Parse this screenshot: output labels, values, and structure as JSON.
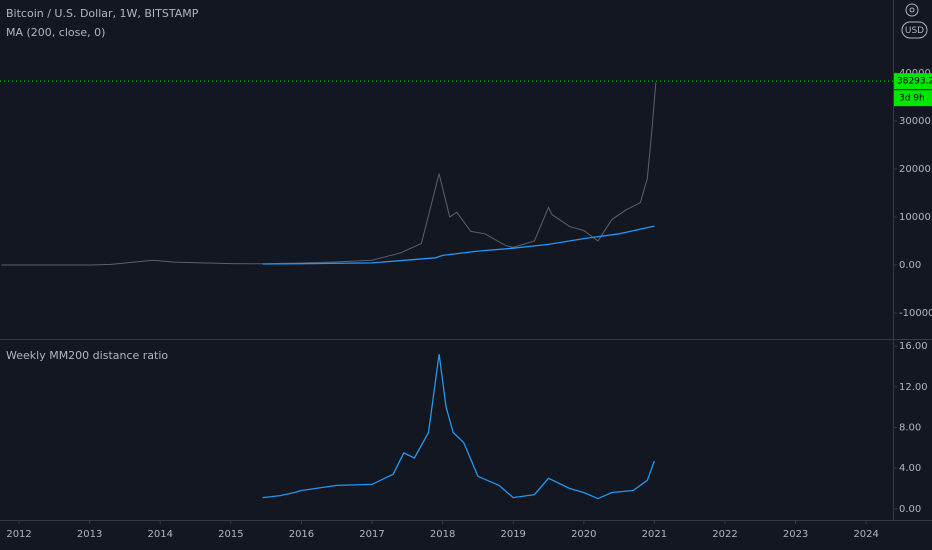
{
  "chart_data": [
    {
      "type": "line",
      "title": "Bitcoin / U.S. Dollar, 1W, BITSTAMP",
      "currency": "USD",
      "last_price": 38293.27,
      "last_price_color": "#00e600",
      "countdown": "3d 9h",
      "xlim": [
        2011.73,
        2024.38
      ],
      "ylim": [
        -15200,
        55200
      ],
      "yticks": [
        {
          "value": -10000,
          "label": "-10000.00"
        },
        {
          "value": 0,
          "label": "0.00"
        },
        {
          "value": 10000,
          "label": "10000.00"
        },
        {
          "value": 20000,
          "label": "20000.00"
        },
        {
          "value": 30000,
          "label": "30000.00"
        },
        {
          "value": 40000,
          "label": "40000.00"
        }
      ],
      "series": [
        {
          "color": "#5d606b",
          "x": [
            2011.75,
            2012.5,
            2013.0,
            2013.3,
            2013.9,
            2014.2,
            2015.0,
            2015.5,
            2016.0,
            2016.5,
            2017.0,
            2017.4,
            2017.7,
            2017.95,
            2018.1,
            2018.2,
            2018.4,
            2018.6,
            2018.9,
            2019.0,
            2019.3,
            2019.5,
            2019.55,
            2019.8,
            2020.0,
            2020.2,
            2020.4,
            2020.6,
            2020.8,
            2020.9,
            2020.97,
            2021.02
          ],
          "values": [
            5,
            7,
            13,
            140,
            1000,
            600,
            300,
            250,
            430,
            650,
            1000,
            2500,
            4500,
            19000,
            10000,
            11000,
            7000,
            6500,
            4000,
            3700,
            5000,
            12000,
            10500,
            8000,
            7200,
            5000,
            9500,
            11500,
            13000,
            18000,
            29000,
            38000
          ]
        },
        {
          "name": "MA (200, close, 0)",
          "color": "#2196f3",
          "x": [
            2015.45,
            2016.0,
            2017.0,
            2017.9,
            2018.0,
            2018.5,
            2019.0,
            2019.5,
            2020.0,
            2020.5,
            2021.0
          ],
          "values": [
            220,
            280,
            450,
            1500,
            2000,
            2900,
            3500,
            4300,
            5500,
            6500,
            8100
          ]
        }
      ]
    },
    {
      "type": "line",
      "title": "Weekly MM200 distance ratio",
      "xlim": [
        2011.73,
        2024.38
      ],
      "xticks": [
        2012,
        2013,
        2014,
        2015,
        2016,
        2017,
        2018,
        2019,
        2020,
        2021,
        2022,
        2023,
        2024
      ],
      "ylim": [
        -1.1,
        16.6
      ],
      "yticks": [
        {
          "value": 0,
          "label": "0.00"
        },
        {
          "value": 4,
          "label": "4.00"
        },
        {
          "value": 8,
          "label": "8.00"
        },
        {
          "value": 12,
          "label": "12.00"
        },
        {
          "value": 16,
          "label": "16.00"
        }
      ],
      "series": [
        {
          "color": "#2196f3",
          "x": [
            2015.45,
            2015.7,
            2015.9,
            2016.0,
            2016.5,
            2017.0,
            2017.3,
            2017.45,
            2017.6,
            2017.8,
            2017.95,
            2018.05,
            2018.15,
            2018.3,
            2018.5,
            2018.8,
            2019.0,
            2019.3,
            2019.5,
            2019.8,
            2020.0,
            2020.2,
            2020.4,
            2020.7,
            2020.9,
            2021.0
          ],
          "values": [
            1.1,
            1.3,
            1.6,
            1.8,
            2.3,
            2.4,
            3.4,
            5.5,
            5.0,
            7.5,
            15.2,
            10,
            7.5,
            6.5,
            3.2,
            2.3,
            1.1,
            1.4,
            3.0,
            2.0,
            1.6,
            1.0,
            1.6,
            1.8,
            2.8,
            4.7
          ]
        }
      ]
    }
  ]
}
